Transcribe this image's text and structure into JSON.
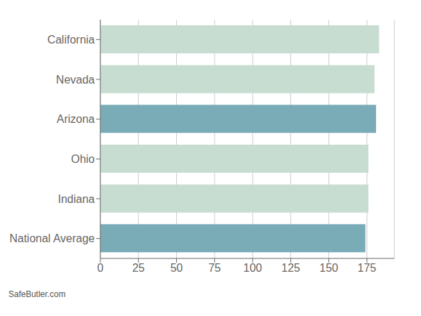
{
  "chart_data": {
    "type": "bar",
    "orientation": "horizontal",
    "categories": [
      "National Average",
      "Indiana",
      "Ohio",
      "Arizona",
      "Nevada",
      "California"
    ],
    "values": [
      174,
      176,
      176,
      181,
      180,
      183
    ],
    "colors": [
      "#7aacb8",
      "#c8ddd1",
      "#c8ddd1",
      "#7aacb8",
      "#c8ddd1",
      "#c8ddd1"
    ],
    "xlim": [
      0,
      193
    ],
    "xticks": [
      0,
      25,
      50,
      75,
      100,
      125,
      150,
      175
    ],
    "grid": true,
    "annotation": "SafeButler.com"
  }
}
